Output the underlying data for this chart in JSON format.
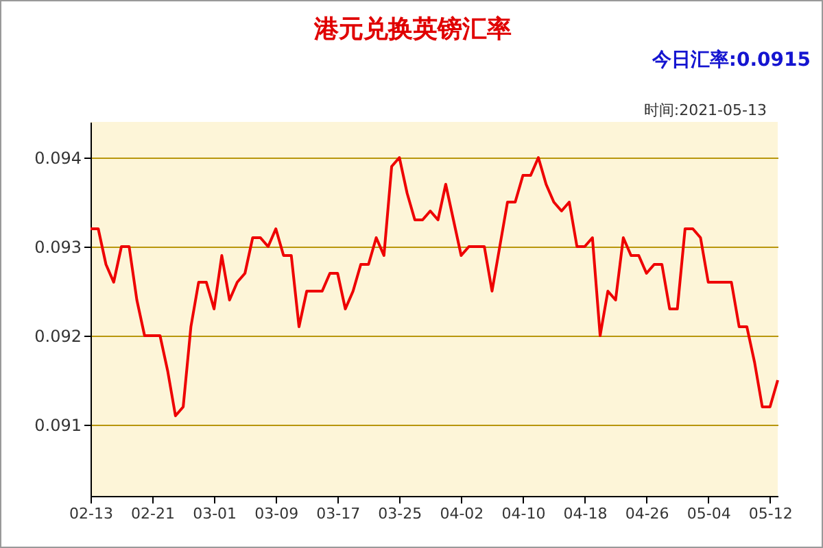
{
  "chart_data": {
    "type": "line",
    "title": "港元兑换英镑汇率",
    "annotations": [
      "今日汇率:0.0915",
      "时间:2021-05-13"
    ],
    "x": [
      "2021-02-13",
      "2021-02-14",
      "2021-02-15",
      "2021-02-16",
      "2021-02-17",
      "2021-02-18",
      "2021-02-19",
      "2021-02-20",
      "2021-02-21",
      "2021-02-22",
      "2021-02-23",
      "2021-02-24",
      "2021-02-25",
      "2021-02-26",
      "2021-02-27",
      "2021-02-28",
      "2021-03-01",
      "2021-03-02",
      "2021-03-03",
      "2021-03-04",
      "2021-03-05",
      "2021-03-06",
      "2021-03-07",
      "2021-03-08",
      "2021-03-09",
      "2021-03-10",
      "2021-03-11",
      "2021-03-12",
      "2021-03-13",
      "2021-03-14",
      "2021-03-15",
      "2021-03-16",
      "2021-03-17",
      "2021-03-18",
      "2021-03-19",
      "2021-03-20",
      "2021-03-21",
      "2021-03-22",
      "2021-03-23",
      "2021-03-24",
      "2021-03-25",
      "2021-03-26",
      "2021-03-27",
      "2021-03-28",
      "2021-03-29",
      "2021-03-30",
      "2021-03-31",
      "2021-04-01",
      "2021-04-02",
      "2021-04-03",
      "2021-04-04",
      "2021-04-05",
      "2021-04-06",
      "2021-04-07",
      "2021-04-08",
      "2021-04-09",
      "2021-04-10",
      "2021-04-11",
      "2021-04-12",
      "2021-04-13",
      "2021-04-14",
      "2021-04-15",
      "2021-04-16",
      "2021-04-17",
      "2021-04-18",
      "2021-04-19",
      "2021-04-20",
      "2021-04-21",
      "2021-04-22",
      "2021-04-23",
      "2021-04-24",
      "2021-04-25",
      "2021-04-26",
      "2021-04-27",
      "2021-04-28",
      "2021-04-29",
      "2021-04-30",
      "2021-05-01",
      "2021-05-02",
      "2021-05-03",
      "2021-05-04",
      "2021-05-05",
      "2021-05-06",
      "2021-05-07",
      "2021-05-08",
      "2021-05-09",
      "2021-05-10",
      "2021-05-11",
      "2021-05-12",
      "2021-05-13"
    ],
    "series": [
      {
        "color": "#ee0000",
        "values": [
          0.0932,
          0.0932,
          0.0928,
          0.0926,
          0.093,
          0.093,
          0.0924,
          0.092,
          0.092,
          0.092,
          0.0916,
          0.0911,
          0.0912,
          0.0921,
          0.0926,
          0.0926,
          0.0923,
          0.0929,
          0.0924,
          0.0926,
          0.0927,
          0.0931,
          0.0931,
          0.093,
          0.0932,
          0.0929,
          0.0929,
          0.0921,
          0.0925,
          0.0925,
          0.0925,
          0.0927,
          0.0927,
          0.0923,
          0.0925,
          0.0928,
          0.0928,
          0.0931,
          0.0929,
          0.0939,
          0.094,
          0.0936,
          0.0933,
          0.0933,
          0.0934,
          0.0933,
          0.0937,
          0.0933,
          0.0929,
          0.093,
          0.093,
          0.093,
          0.0925,
          0.093,
          0.0935,
          0.0935,
          0.0938,
          0.0938,
          0.094,
          0.0937,
          0.0935,
          0.0934,
          0.0935,
          0.093,
          0.093,
          0.0931,
          0.092,
          0.0925,
          0.0924,
          0.0931,
          0.0929,
          0.0929,
          0.0927,
          0.0928,
          0.0928,
          0.0923,
          0.0923,
          0.0932,
          0.0932,
          0.0931,
          0.0926,
          0.0926,
          0.0926,
          0.0926,
          0.0921,
          0.0921,
          0.0917,
          0.0912,
          0.0912,
          0.0915
        ]
      }
    ],
    "xlim": [
      "2021-02-13",
      "2021-05-13"
    ],
    "xticks": [
      {
        "value": "2021-02-13",
        "label": "02-13"
      },
      {
        "value": "2021-02-21",
        "label": "02-21"
      },
      {
        "value": "2021-03-01",
        "label": "03-01"
      },
      {
        "value": "2021-03-09",
        "label": "03-09"
      },
      {
        "value": "2021-03-17",
        "label": "03-17"
      },
      {
        "value": "2021-03-25",
        "label": "03-25"
      },
      {
        "value": "2021-04-02",
        "label": "04-02"
      },
      {
        "value": "2021-04-10",
        "label": "04-10"
      },
      {
        "value": "2021-04-18",
        "label": "04-18"
      },
      {
        "value": "2021-04-26",
        "label": "04-26"
      },
      {
        "value": "2021-05-04",
        "label": "05-04"
      },
      {
        "value": "2021-05-12",
        "label": "05-12"
      }
    ],
    "ylim": [
      0.0902,
      0.0944
    ],
    "yticks": [
      0.091,
      0.092,
      0.093,
      0.094
    ],
    "grid": "y",
    "marker": "none",
    "line_style": "solid"
  }
}
